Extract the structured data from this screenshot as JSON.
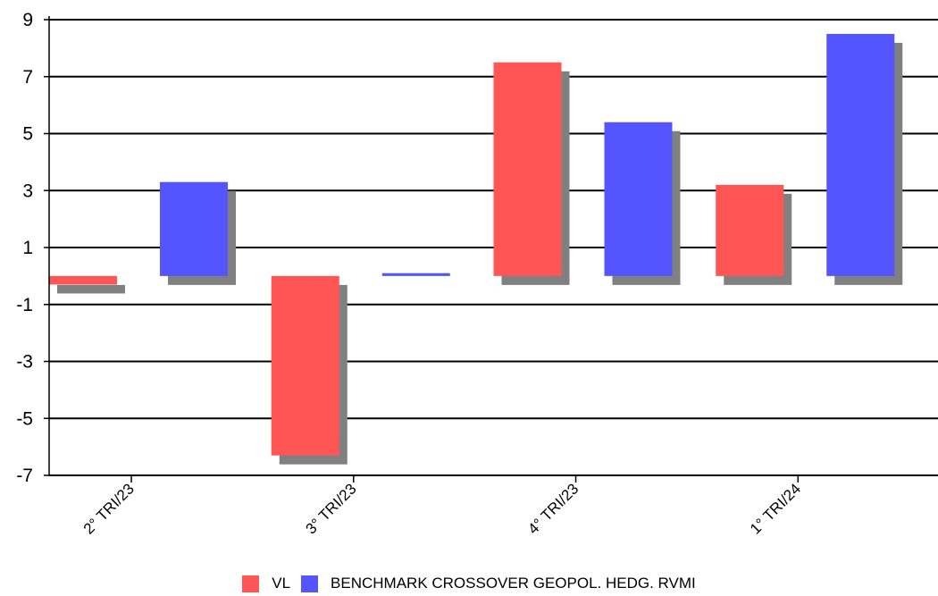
{
  "chart_data": {
    "type": "bar",
    "title": "",
    "xlabel": "",
    "ylabel": "",
    "categories": [
      "2° TRI/23",
      "3° TRI/23",
      "4° TRI/23",
      "1° TRI/24"
    ],
    "series": [
      {
        "name": "VL",
        "values": [
          -0.3,
          -6.3,
          7.5,
          3.2
        ],
        "color": "#ff5555"
      },
      {
        "name": "BENCHMARK CROSSOVER GEOPOL. HEDG. RVMI",
        "values": [
          3.3,
          0.1,
          5.4,
          8.5
        ],
        "color": "#5555ff"
      }
    ],
    "ylim": [
      -7,
      9
    ],
    "yticks": [
      9,
      7,
      5,
      3,
      1,
      -1,
      -3,
      -5,
      -7
    ],
    "grid": true,
    "shadow_color": "#808080",
    "legend_position": "bottom"
  }
}
